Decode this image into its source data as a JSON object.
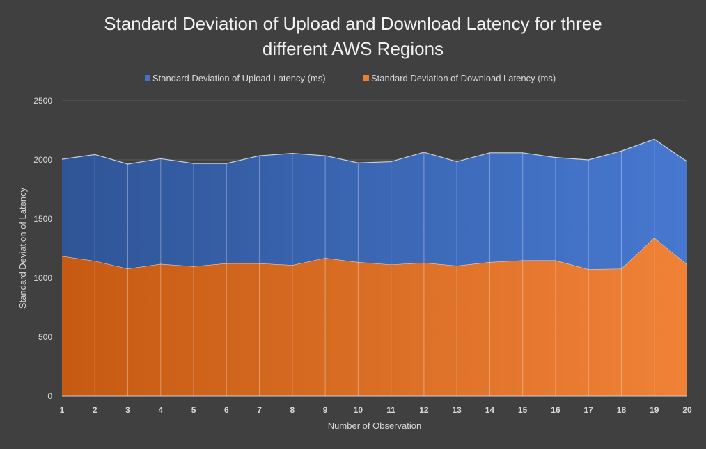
{
  "chart_data": {
    "type": "area",
    "stacked": true,
    "title_lines": [
      "Standard Deviation of Upload and Download Latency for three",
      "different AWS Regions"
    ],
    "xlabel": "Number of Observation",
    "ylabel": "Standard Deviation of Latency",
    "ylim": [
      0,
      2500
    ],
    "yticks": [
      0,
      500,
      1000,
      1500,
      2000,
      2500
    ],
    "grid": true,
    "legend_position": "top",
    "categories": [
      "1",
      "2",
      "3",
      "4",
      "5",
      "6",
      "7",
      "8",
      "9",
      "10",
      "11",
      "12",
      "13",
      "14",
      "15",
      "16",
      "17",
      "18",
      "19",
      "20"
    ],
    "series": [
      {
        "name": "Standard Deviation of Download Latency (ms)",
        "color": "#ED7D31",
        "values": [
          1185,
          1145,
          1080,
          1120,
          1100,
          1125,
          1125,
          1110,
          1170,
          1135,
          1115,
          1130,
          1105,
          1135,
          1150,
          1150,
          1075,
          1080,
          1340,
          1115
        ]
      },
      {
        "name": "Standard Deviation of Upload Latency (ms)",
        "color": "#4472C4",
        "values": [
          820,
          900,
          885,
          890,
          870,
          845,
          910,
          945,
          865,
          840,
          870,
          935,
          880,
          925,
          910,
          870,
          925,
          995,
          835,
          870
        ]
      }
    ],
    "legend_order": [
      1,
      0
    ]
  }
}
